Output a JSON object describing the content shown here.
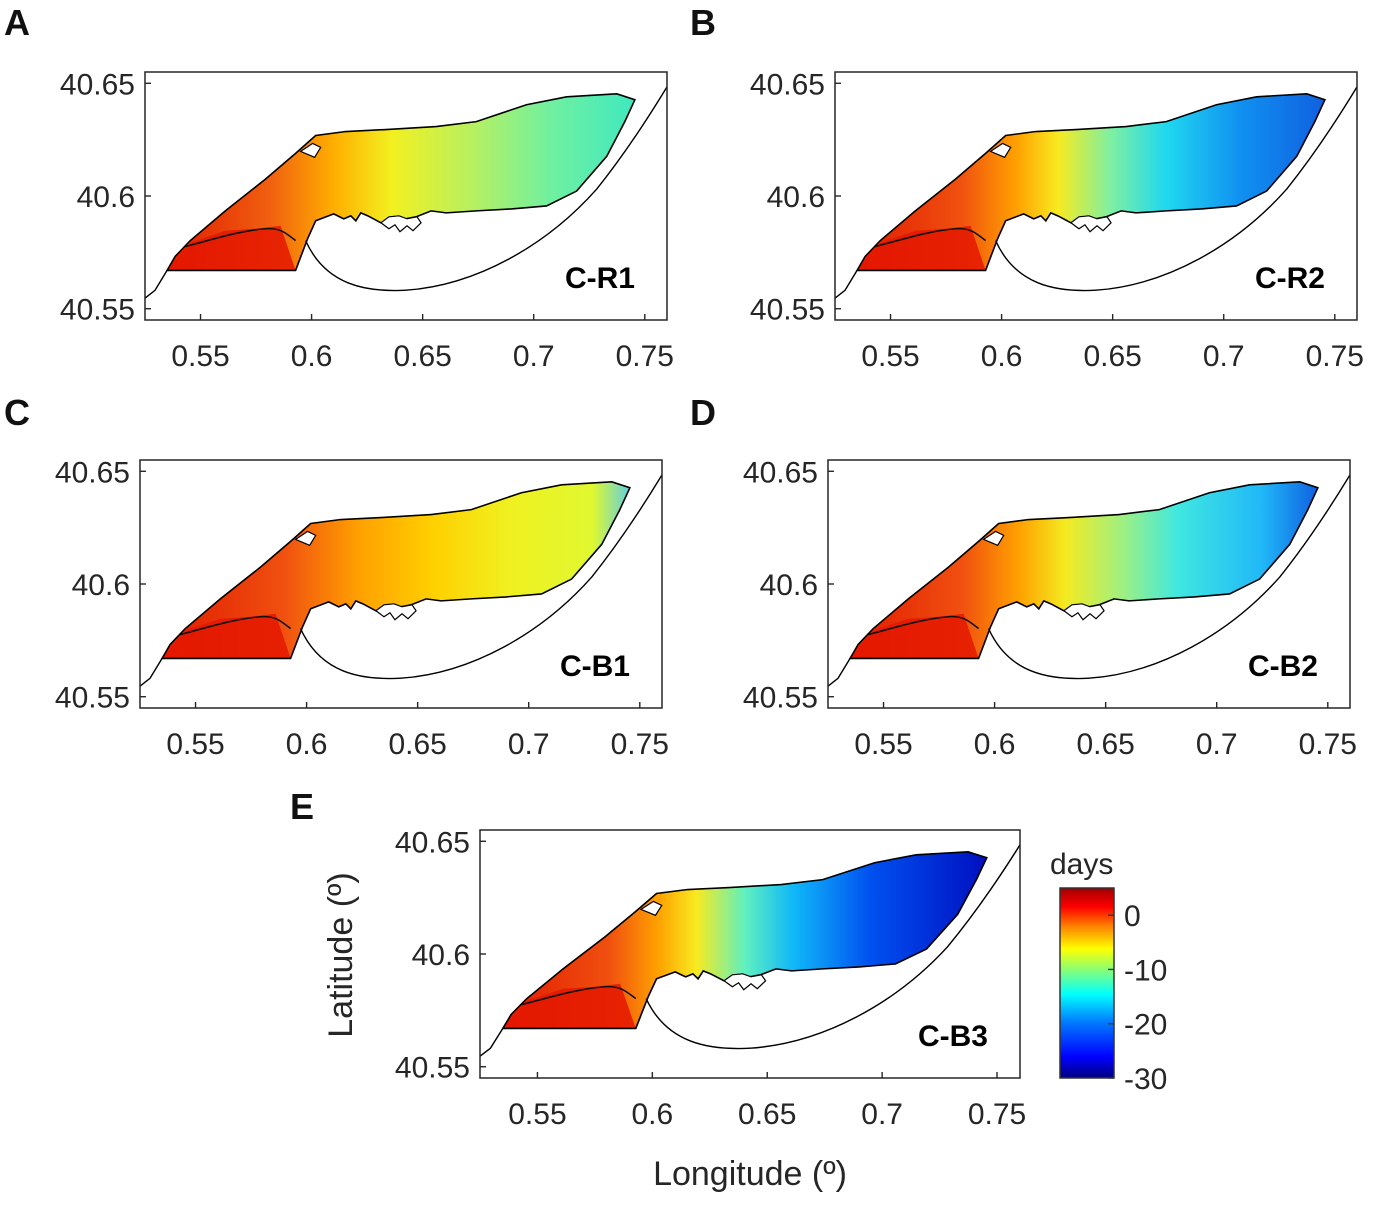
{
  "figure": {
    "xlabel": "Longitude (º)",
    "ylabel": "Latitude (º)",
    "x_ticks": [
      "0.55",
      "0.6",
      "0.65",
      "0.7",
      "0.75"
    ],
    "y_ticks": [
      "40.65",
      "40.6",
      "40.55"
    ]
  },
  "panels": [
    {
      "letter": "A",
      "scenario": "C-R1"
    },
    {
      "letter": "B",
      "scenario": "C-R2"
    },
    {
      "letter": "C",
      "scenario": "C-B1"
    },
    {
      "letter": "D",
      "scenario": "C-B2"
    },
    {
      "letter": "E",
      "scenario": "C-B3"
    }
  ],
  "colorbar": {
    "title": "days",
    "ticks": [
      "0",
      "-10",
      "-20",
      "-30"
    ],
    "range": [
      -30,
      5
    ],
    "colors": [
      "#00007f",
      "#0000ff",
      "#007fff",
      "#00ffff",
      "#7fff7f",
      "#ffff00",
      "#ff7f00",
      "#ff0000",
      "#7f0000"
    ]
  },
  "chart_data": {
    "type": "heatmap",
    "title": "",
    "xlabel": "Longitude (º)",
    "ylabel": "Latitude (º)",
    "xlim": [
      0.525,
      0.76
    ],
    "ylim": [
      40.545,
      40.655
    ],
    "colorbar_label": "days",
    "colorbar_range": [
      -30,
      5
    ],
    "panels": [
      {
        "label": "A",
        "scenario": "C-R1",
        "west_value": 3,
        "center_value": -8,
        "east_value": -14
      },
      {
        "label": "B",
        "scenario": "C-R2",
        "west_value": 3,
        "center_value": -12,
        "east_value": -24
      },
      {
        "label": "C",
        "scenario": "C-B1",
        "west_value": 3,
        "center_value": -5,
        "east_value": -9
      },
      {
        "label": "D",
        "scenario": "C-B2",
        "west_value": 3,
        "center_value": -11,
        "east_value": -19
      },
      {
        "label": "E",
        "scenario": "C-B3",
        "west_value": 3,
        "center_value": -16,
        "east_value": -27
      }
    ]
  }
}
